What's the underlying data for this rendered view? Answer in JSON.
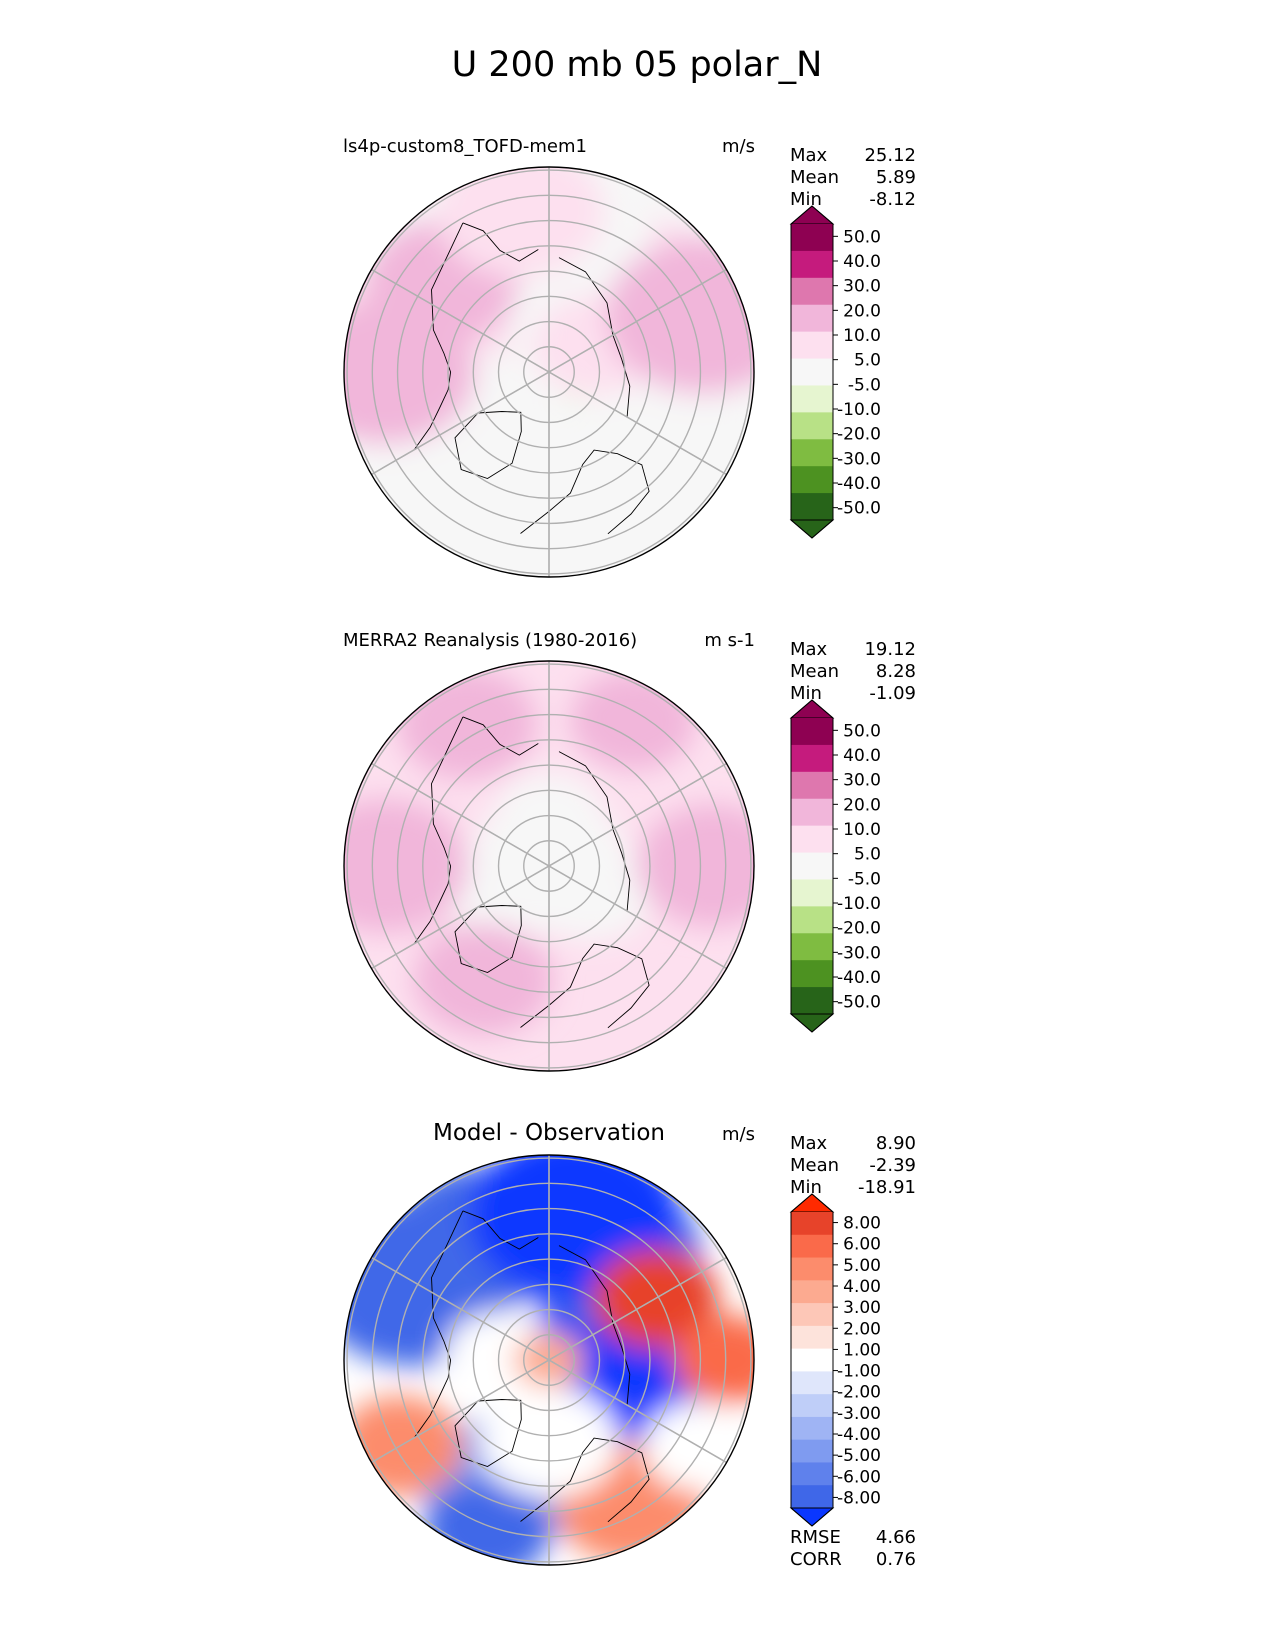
{
  "page_title": "U 200 mb 05 polar_N",
  "chart_data": [
    {
      "type": "polar-contour-map",
      "panel": "model",
      "title_left": "ls4p-custom8_TOFD-mem1",
      "units": "m/s",
      "stats": [
        {
          "label": "Max",
          "value": "25.12"
        },
        {
          "label": "Mean",
          "value": "5.89"
        },
        {
          "label": "Min",
          "value": "-8.12"
        }
      ],
      "colorbar": {
        "ticks": [
          "50.0",
          "40.0",
          "30.0",
          "20.0",
          "10.0",
          "5.0",
          "-5.0",
          "-10.0",
          "-20.0",
          "-30.0",
          "-40.0",
          "-50.0"
        ],
        "colors": [
          "#8e0152",
          "#c51b7d",
          "#de77ae",
          "#f1b6da",
          "#fde0ef",
          "#f7f7f7",
          "#e6f5d0",
          "#b8e186",
          "#7fbc41",
          "#4d9221",
          "#276419"
        ],
        "extend_top": "#8e0152",
        "extend_bottom": "#276419"
      },
      "map": {
        "base_color": "#f7f7f7",
        "regions": [
          {
            "lon": 135,
            "colat": 30,
            "size": 25,
            "color": "#fde0ef"
          },
          {
            "lon": 180,
            "colat": 32,
            "size": 30,
            "color": "#f7f7f7"
          },
          {
            "lon": 90,
            "colat": 22,
            "size": 22,
            "color": "#e6f5d0"
          },
          {
            "lon": 70,
            "colat": 31,
            "size": 26,
            "color": "#f7f7f7"
          },
          {
            "lon": -100,
            "colat": 35,
            "size": 30,
            "color": "#fde0ef"
          },
          {
            "lon": -130,
            "colat": 34,
            "size": 22,
            "color": "#f1b6da"
          },
          {
            "lon": -45,
            "colat": 36,
            "size": 30,
            "color": "#f7f7f7"
          },
          {
            "lon": 15,
            "colat": 32,
            "size": 30,
            "color": "#f7f7f7"
          },
          {
            "lon": 120,
            "colat": 13,
            "size": 18,
            "color": "#fde0ef"
          },
          {
            "lon": -60,
            "colat": 18,
            "size": 20,
            "color": "#f7f7f7"
          },
          {
            "lon": -90,
            "colat": 40,
            "size": 26,
            "color": "#f1b6da"
          },
          {
            "lon": -170,
            "colat": 40,
            "size": 24,
            "color": "#fde0ef"
          },
          {
            "lon": 110,
            "colat": 40,
            "size": 28,
            "color": "#f1b6da"
          }
        ]
      }
    },
    {
      "type": "polar-contour-map",
      "panel": "observation",
      "title_left": "MERRA2 Reanalysis (1980-2016)",
      "units": "m s-1",
      "stats": [
        {
          "label": "Max",
          "value": "19.12"
        },
        {
          "label": "Mean",
          "value": "8.28"
        },
        {
          "label": "Min",
          "value": "-1.09"
        }
      ],
      "colorbar": {
        "ticks": [
          "50.0",
          "40.0",
          "30.0",
          "20.0",
          "10.0",
          "5.0",
          "-5.0",
          "-10.0",
          "-20.0",
          "-30.0",
          "-40.0",
          "-50.0"
        ],
        "colors": [
          "#8e0152",
          "#c51b7d",
          "#de77ae",
          "#f1b6da",
          "#fde0ef",
          "#f7f7f7",
          "#e6f5d0",
          "#b8e186",
          "#7fbc41",
          "#4d9221",
          "#276419"
        ],
        "extend_top": "#8e0152",
        "extend_bottom": "#276419"
      },
      "map": {
        "base_color": "#fde0ef",
        "regions": [
          {
            "lon": 0,
            "colat": 0,
            "size": 24,
            "color": "#f7f7f7"
          },
          {
            "lon": 60,
            "colat": 12,
            "size": 18,
            "color": "#f7f7f7"
          },
          {
            "lon": -60,
            "colat": 12,
            "size": 18,
            "color": "#f7f7f7"
          },
          {
            "lon": 180,
            "colat": 12,
            "size": 16,
            "color": "#f7f7f7"
          },
          {
            "lon": 90,
            "colat": 40,
            "size": 22,
            "color": "#f1b6da"
          },
          {
            "lon": -90,
            "colat": 40,
            "size": 24,
            "color": "#f1b6da"
          },
          {
            "lon": -150,
            "colat": 40,
            "size": 20,
            "color": "#f1b6da"
          },
          {
            "lon": 150,
            "colat": 41,
            "size": 18,
            "color": "#f1b6da"
          },
          {
            "lon": -30,
            "colat": 32,
            "size": 20,
            "color": "#f1b6da"
          }
        ]
      }
    },
    {
      "type": "polar-contour-map",
      "panel": "difference",
      "title_center": "Model - Observation",
      "units": "m/s",
      "stats": [
        {
          "label": "Max",
          "value": "8.90"
        },
        {
          "label": "Mean",
          "value": "-2.39"
        },
        {
          "label": "Min",
          "value": "-18.91"
        }
      ],
      "extra_stats": [
        {
          "label": "RMSE",
          "value": "4.66"
        },
        {
          "label": "CORR",
          "value": "0.76"
        }
      ],
      "colorbar": {
        "ticks": [
          "8.00",
          "6.00",
          "5.00",
          "4.00",
          "3.00",
          "2.00",
          "1.00",
          "-1.00",
          "-2.00",
          "-3.00",
          "-4.00",
          "-5.00",
          "-6.00",
          "-8.00"
        ],
        "colors": [
          "#e7432a",
          "#fa6a4a",
          "#fc8c6c",
          "#fcaa90",
          "#fdc7b7",
          "#fde3db",
          "#ffffff",
          "#dfe6fb",
          "#bfcef8",
          "#9fb4f4",
          "#7f9bf0",
          "#5f81ec",
          "#3f67e8"
        ],
        "extend_top": "#ff2a00",
        "extend_bottom": "#0a37ff"
      },
      "map": {
        "base_color": "#ffffff",
        "regions": [
          {
            "lon": 90,
            "colat": 18,
            "size": 30,
            "color": "#0a37ff"
          },
          {
            "lon": 150,
            "colat": 30,
            "size": 26,
            "color": "#3f67e8"
          },
          {
            "lon": -150,
            "colat": 34,
            "size": 26,
            "color": "#3f67e8"
          },
          {
            "lon": -120,
            "colat": 38,
            "size": 30,
            "color": "#3f67e8"
          },
          {
            "lon": 170,
            "colat": 36,
            "size": 30,
            "color": "#0a37ff"
          },
          {
            "lon": -20,
            "colat": 32,
            "size": 24,
            "color": "#7f9bf0"
          },
          {
            "lon": 30,
            "colat": 40,
            "size": 22,
            "color": "#fc8c6c"
          },
          {
            "lon": 120,
            "colat": 30,
            "size": 18,
            "color": "#e7432a"
          },
          {
            "lon": -95,
            "colat": 12,
            "size": 16,
            "color": "#ffffff"
          },
          {
            "lon": -90,
            "colat": 0,
            "size": 10,
            "color": "#fcaa90"
          },
          {
            "lon": 90,
            "colat": 44,
            "size": 16,
            "color": "#fa6a4a"
          },
          {
            "lon": 60,
            "colat": 42,
            "size": 16,
            "color": "#ffffff"
          },
          {
            "lon": -20,
            "colat": 44,
            "size": 18,
            "color": "#3f67e8"
          },
          {
            "lon": -60,
            "colat": 42,
            "size": 18,
            "color": "#fc8c6c"
          },
          {
            "lon": 0,
            "colat": 20,
            "size": 20,
            "color": "#ffffff"
          }
        ]
      }
    }
  ]
}
